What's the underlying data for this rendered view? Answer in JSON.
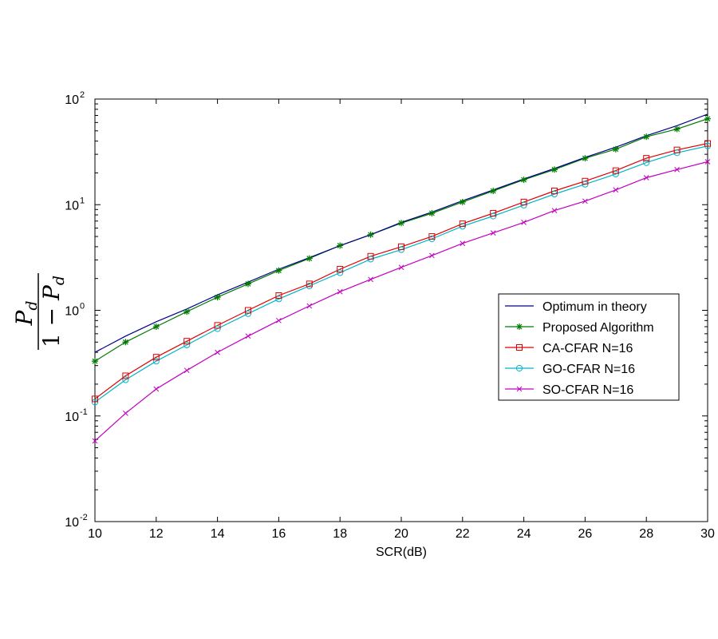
{
  "chart_data": {
    "type": "line",
    "xlabel": "SCR(dB)",
    "ylabel": {
      "numerator": "P",
      "numerator_sub": "d",
      "denominator_prefix": "1 − ",
      "denominator": "P",
      "denominator_sub": "d"
    },
    "xlim": [
      10,
      30
    ],
    "ylim": [
      0.01,
      100
    ],
    "yscale": "log",
    "grid": false,
    "legend_position": "right-middle",
    "x_ticks": [
      10,
      12,
      14,
      16,
      18,
      20,
      22,
      24,
      26,
      28,
      30
    ],
    "x_tick_labels": [
      "10",
      "12",
      "14",
      "16",
      "18",
      "20",
      "22",
      "24",
      "26",
      "28",
      "30"
    ],
    "y_ticks": [
      0.01,
      0.1,
      1,
      10,
      100
    ],
    "y_tick_labels": [
      {
        "base": "10",
        "exp": "-2"
      },
      {
        "base": "10",
        "exp": "-1"
      },
      {
        "base": "10",
        "exp": "0"
      },
      {
        "base": "10",
        "exp": "1"
      },
      {
        "base": "10",
        "exp": "2"
      }
    ],
    "x": [
      10,
      11,
      12,
      13,
      14,
      15,
      16,
      17,
      18,
      19,
      20,
      21,
      22,
      23,
      24,
      25,
      26,
      27,
      28,
      29,
      30
    ],
    "series": [
      {
        "name": "Optimum in theory",
        "color": "#00008b",
        "marker": "none",
        "values": [
          0.4,
          0.57,
          0.78,
          1.03,
          1.4,
          1.85,
          2.45,
          3.15,
          4.1,
          5.2,
          6.8,
          8.5,
          10.9,
          13.8,
          17.5,
          22.0,
          28.0,
          35.0,
          45.0,
          56.0,
          72.0
        ]
      },
      {
        "name": "Proposed Algorithm",
        "color": "#007a00",
        "marker": "star",
        "values": [
          0.33,
          0.5,
          0.7,
          0.97,
          1.33,
          1.78,
          2.38,
          3.1,
          4.1,
          5.2,
          6.7,
          8.3,
          10.6,
          13.5,
          17.2,
          21.5,
          27.5,
          33.5,
          44.0,
          52.0,
          65.0
        ]
      },
      {
        "name": "CA-CFAR N=16",
        "color": "#e00000",
        "marker": "square",
        "values": [
          0.145,
          0.24,
          0.36,
          0.51,
          0.72,
          1.0,
          1.38,
          1.78,
          2.45,
          3.25,
          4.0,
          5.0,
          6.6,
          8.3,
          10.6,
          13.5,
          16.7,
          21.0,
          27.5,
          33.0,
          38.0
        ]
      },
      {
        "name": "GO-CFAR N=16",
        "color": "#00b4c8",
        "marker": "circle",
        "values": [
          0.135,
          0.22,
          0.33,
          0.47,
          0.67,
          0.93,
          1.28,
          1.7,
          2.27,
          3.05,
          3.75,
          4.75,
          6.25,
          7.8,
          9.9,
          12.6,
          15.6,
          19.5,
          25.0,
          31.0,
          36.0
        ]
      },
      {
        "name": "SO-CFAR N=16",
        "color": "#c000c0",
        "marker": "x",
        "values": [
          0.058,
          0.106,
          0.18,
          0.27,
          0.4,
          0.57,
          0.8,
          1.1,
          1.5,
          1.96,
          2.55,
          3.3,
          4.3,
          5.4,
          6.8,
          8.8,
          10.8,
          13.8,
          18.0,
          21.5,
          25.5
        ]
      }
    ]
  }
}
